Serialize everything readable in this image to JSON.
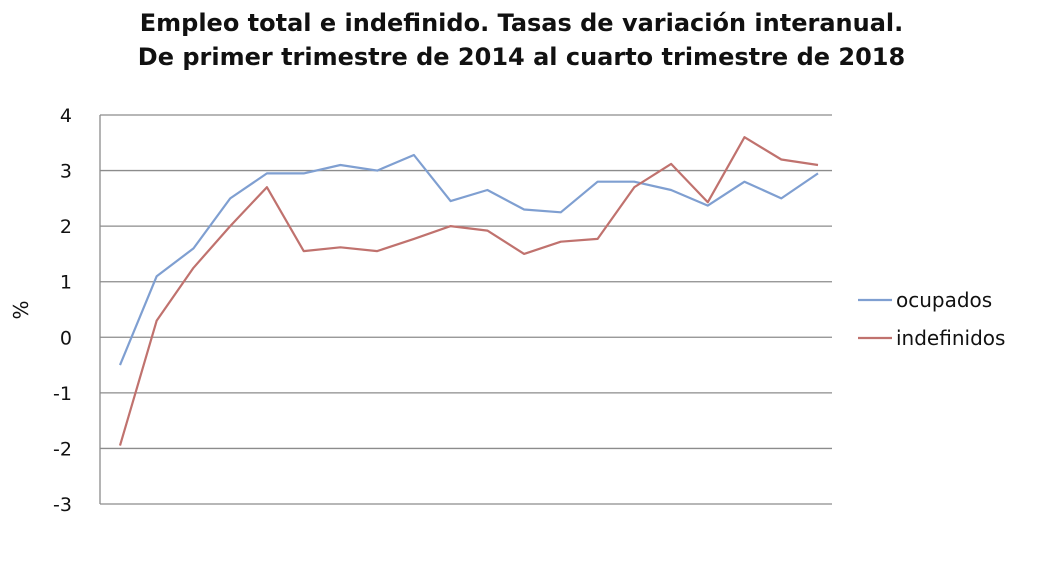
{
  "chart_data": {
    "type": "line",
    "title": "Empleo total e indefinido. Tasas de variación interanual.",
    "subtitle": "De primer trimestre de 2014 al cuarto trimestre de 2018",
    "xlabel": "",
    "ylabel": "%",
    "ylim": [
      -3,
      4
    ],
    "yticks": [
      "4",
      "3",
      "2",
      "1",
      "0",
      "-1",
      "-2",
      "-3"
    ],
    "grid": true,
    "legend_position": "right",
    "series": [
      {
        "name": "ocupados",
        "color": "#7f9fd1",
        "values": [
          -0.5,
          1.1,
          1.6,
          2.5,
          2.95,
          2.95,
          3.1,
          3.0,
          3.28,
          2.45,
          2.65,
          2.3,
          2.25,
          2.8,
          2.8,
          2.65,
          2.37,
          2.8,
          2.5,
          2.95
        ]
      },
      {
        "name": "indefinidos",
        "color": "#c0726e",
        "values": [
          -1.95,
          0.3,
          1.25,
          2.0,
          2.7,
          1.55,
          1.62,
          1.55,
          1.77,
          2.0,
          1.92,
          1.5,
          1.72,
          1.77,
          2.7,
          3.12,
          2.43,
          3.6,
          3.2,
          3.1
        ]
      }
    ]
  }
}
